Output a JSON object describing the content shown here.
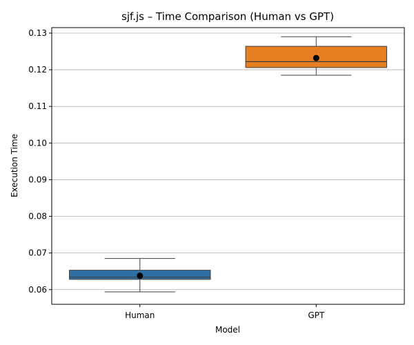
{
  "chart_data": {
    "type": "box",
    "title": "sjf.js – Time Comparison (Human vs GPT)",
    "xlabel": "Model",
    "ylabel": "Execution Time",
    "categories": [
      "Human",
      "GPT"
    ],
    "ylim": [
      0.056,
      0.1315
    ],
    "yticks": [
      "0.06",
      "0.07",
      "0.08",
      "0.09",
      "0.10",
      "0.11",
      "0.12",
      "0.13"
    ],
    "grid": "y",
    "boxes": [
      {
        "category": "Human",
        "whisker_low": 0.0594,
        "q1": 0.0628,
        "median": 0.0634,
        "q3": 0.0653,
        "whisker_high": 0.0685,
        "mean": 0.0638,
        "color": "#2d6fa3"
      },
      {
        "category": "GPT",
        "whisker_low": 0.1185,
        "q1": 0.1206,
        "median": 0.1222,
        "q3": 0.1264,
        "whisker_high": 0.129,
        "mean": 0.1232,
        "color": "#e67e22"
      }
    ]
  }
}
